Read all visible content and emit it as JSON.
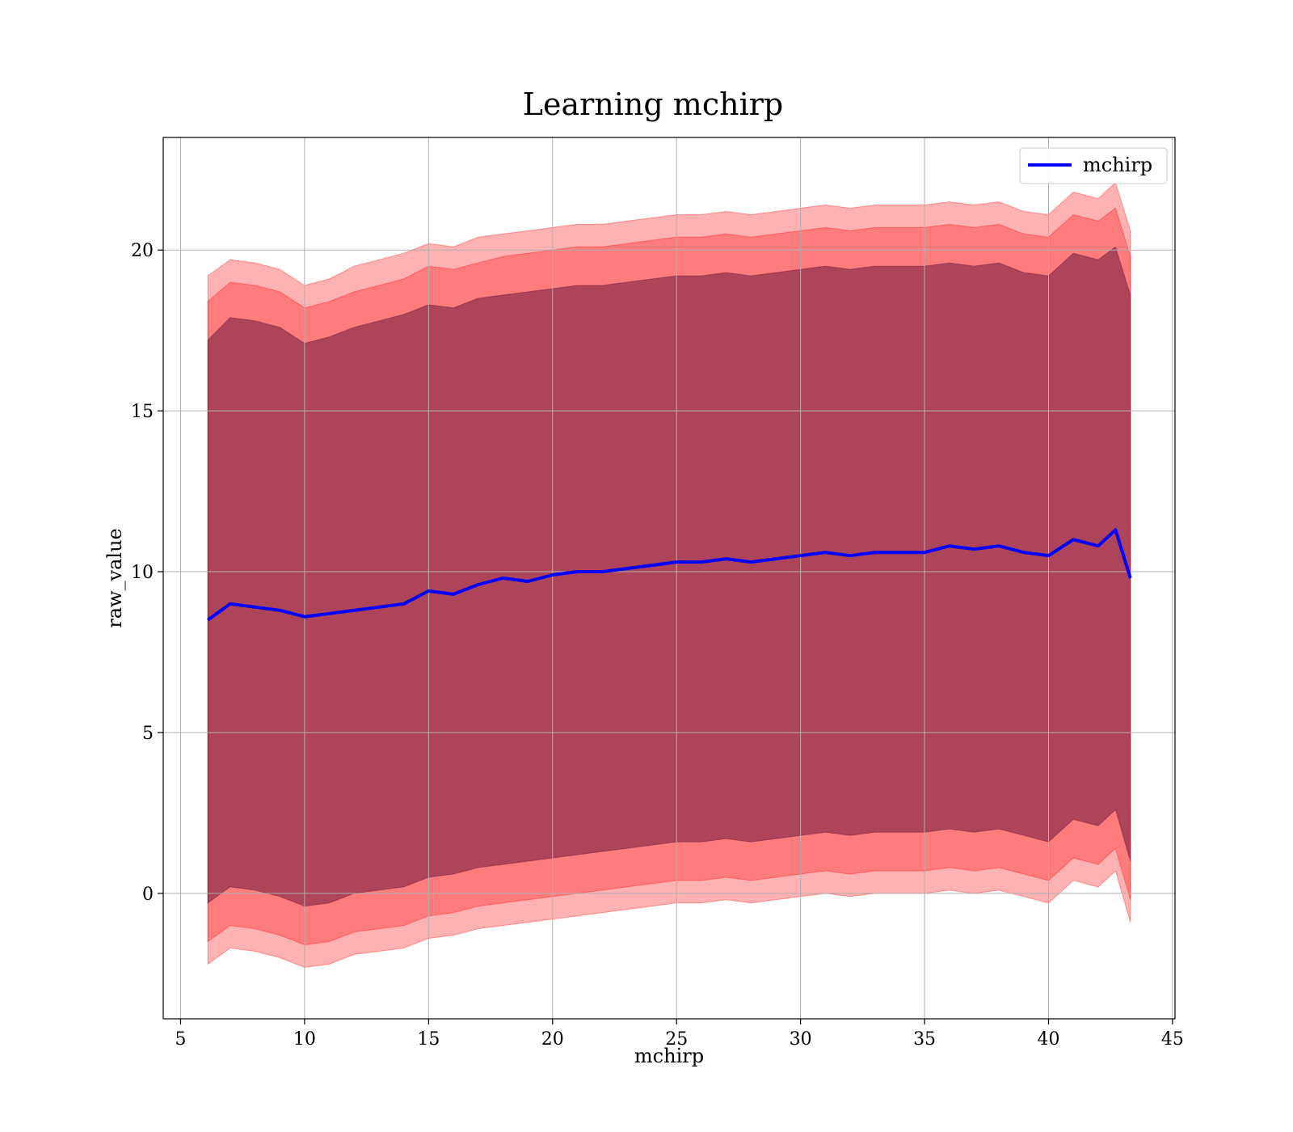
{
  "chart_data": {
    "type": "area",
    "title": "Learning mchirp",
    "xlabel": "mchirp",
    "ylabel": "raw_value",
    "xlim": [
      4.3,
      45.1
    ],
    "ylim": [
      -3.9,
      23.5
    ],
    "xticks": [
      5,
      10,
      15,
      20,
      25,
      30,
      35,
      40,
      45
    ],
    "yticks": [
      0,
      5,
      10,
      15,
      20
    ],
    "grid": true,
    "legend": {
      "position": "top-right",
      "entries": [
        "mchirp"
      ]
    },
    "x": [
      6.1,
      7,
      8,
      9,
      10,
      11,
      12,
      13,
      14,
      15,
      16,
      17,
      18,
      19,
      20,
      21,
      22,
      23,
      24,
      25,
      26,
      27,
      28,
      29,
      30,
      31,
      32,
      33,
      34,
      35,
      36,
      37,
      38,
      39,
      40,
      41,
      42,
      42.7,
      43.3
    ],
    "series": [
      {
        "name": "mchirp",
        "color": "#0000ff",
        "values": [
          8.5,
          9.0,
          8.9,
          8.8,
          8.6,
          8.7,
          8.8,
          8.9,
          9.0,
          9.4,
          9.3,
          9.6,
          9.8,
          9.7,
          9.9,
          10.0,
          10.0,
          10.1,
          10.2,
          10.3,
          10.3,
          10.4,
          10.3,
          10.4,
          10.5,
          10.6,
          10.5,
          10.6,
          10.6,
          10.6,
          10.8,
          10.7,
          10.8,
          10.6,
          10.5,
          11.0,
          10.8,
          11.3,
          9.8
        ]
      }
    ],
    "bands": [
      {
        "name": "outer",
        "color": "#ff0000",
        "opacity": 0.3,
        "upper": [
          19.2,
          19.7,
          19.6,
          19.4,
          18.9,
          19.1,
          19.5,
          19.7,
          19.9,
          20.2,
          20.1,
          20.4,
          20.5,
          20.6,
          20.7,
          20.8,
          20.8,
          20.9,
          21.0,
          21.1,
          21.1,
          21.2,
          21.1,
          21.2,
          21.3,
          21.4,
          21.3,
          21.4,
          21.4,
          21.4,
          21.5,
          21.4,
          21.5,
          21.2,
          21.1,
          21.8,
          21.6,
          22.1,
          20.6
        ],
        "lower": [
          -2.2,
          -1.7,
          -1.8,
          -2.0,
          -2.3,
          -2.2,
          -1.9,
          -1.8,
          -1.7,
          -1.4,
          -1.3,
          -1.1,
          -1.0,
          -0.9,
          -0.8,
          -0.7,
          -0.6,
          -0.5,
          -0.4,
          -0.3,
          -0.3,
          -0.2,
          -0.3,
          -0.2,
          -0.1,
          0.0,
          -0.1,
          0.0,
          0.0,
          0.0,
          0.1,
          0.0,
          0.1,
          -0.1,
          -0.3,
          0.4,
          0.2,
          0.7,
          -0.9
        ]
      },
      {
        "name": "middle",
        "color": "#ff0000",
        "opacity": 0.3,
        "upper": [
          18.4,
          19.0,
          18.9,
          18.7,
          18.2,
          18.4,
          18.7,
          18.9,
          19.1,
          19.5,
          19.4,
          19.6,
          19.8,
          19.9,
          20.0,
          20.1,
          20.1,
          20.2,
          20.3,
          20.4,
          20.4,
          20.5,
          20.4,
          20.5,
          20.6,
          20.7,
          20.6,
          20.7,
          20.7,
          20.7,
          20.8,
          20.7,
          20.8,
          20.5,
          20.4,
          21.1,
          20.9,
          21.3,
          19.8
        ],
        "lower": [
          -1.5,
          -1.0,
          -1.1,
          -1.3,
          -1.6,
          -1.5,
          -1.2,
          -1.1,
          -1.0,
          -0.7,
          -0.6,
          -0.4,
          -0.3,
          -0.2,
          -0.1,
          0.0,
          0.1,
          0.2,
          0.3,
          0.4,
          0.4,
          0.5,
          0.4,
          0.5,
          0.6,
          0.7,
          0.6,
          0.7,
          0.7,
          0.7,
          0.8,
          0.7,
          0.8,
          0.6,
          0.4,
          1.1,
          0.9,
          1.4,
          -0.2
        ]
      },
      {
        "name": "inner",
        "color": "#4b0030",
        "opacity": 0.45,
        "upper": [
          17.2,
          17.9,
          17.8,
          17.6,
          17.1,
          17.3,
          17.6,
          17.8,
          18.0,
          18.3,
          18.2,
          18.5,
          18.6,
          18.7,
          18.8,
          18.9,
          18.9,
          19.0,
          19.1,
          19.2,
          19.2,
          19.3,
          19.2,
          19.3,
          19.4,
          19.5,
          19.4,
          19.5,
          19.5,
          19.5,
          19.6,
          19.5,
          19.6,
          19.3,
          19.2,
          19.9,
          19.7,
          20.1,
          18.6
        ],
        "lower": [
          -0.3,
          0.2,
          0.1,
          -0.1,
          -0.4,
          -0.3,
          0.0,
          0.1,
          0.2,
          0.5,
          0.6,
          0.8,
          0.9,
          1.0,
          1.1,
          1.2,
          1.3,
          1.4,
          1.5,
          1.6,
          1.6,
          1.7,
          1.6,
          1.7,
          1.8,
          1.9,
          1.8,
          1.9,
          1.9,
          1.9,
          2.0,
          1.9,
          2.0,
          1.8,
          1.6,
          2.3,
          2.1,
          2.6,
          1.0
        ]
      }
    ]
  }
}
